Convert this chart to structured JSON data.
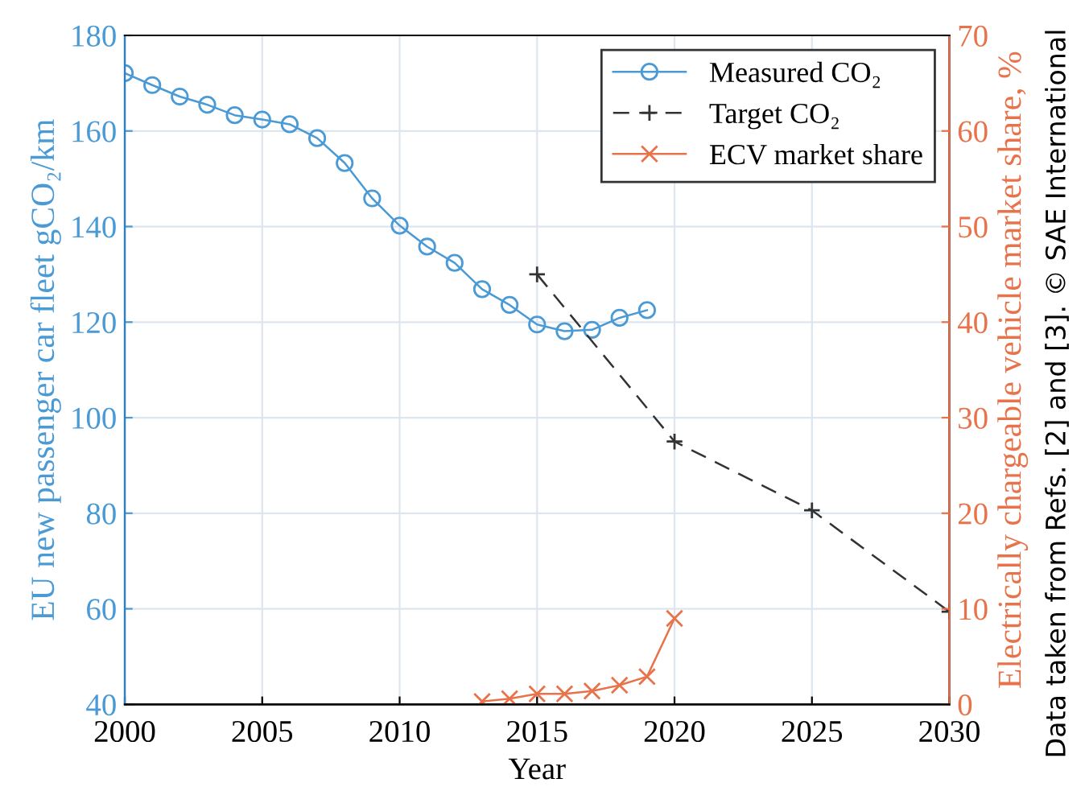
{
  "chart_data": {
    "type": "line",
    "xlabel": "Year",
    "ylabel": "EU new passenger car fleet gCO₂/km",
    "y2label": "Electrically chargeable vehicle market share, %",
    "xlim": [
      2000,
      2030
    ],
    "xticks": [
      2000,
      2005,
      2010,
      2015,
      2020,
      2025,
      2030
    ],
    "ylim": [
      40,
      180
    ],
    "yticks": [
      40,
      60,
      80,
      100,
      120,
      140,
      160,
      180
    ],
    "y2lim": [
      0,
      70
    ],
    "y2ticks": [
      0,
      10,
      20,
      30,
      40,
      50,
      60,
      70
    ],
    "grid": true,
    "legend": "top right",
    "series": [
      {
        "name": "Measured CO₂",
        "color": "#4a9ad6",
        "marker": "circle",
        "line_style": "solid",
        "x": [
          2000,
          2001,
          2002,
          2003,
          2004,
          2005,
          2006,
          2007,
          2008,
          2009,
          2010,
          2011,
          2012,
          2013,
          2014,
          2015,
          2016,
          2017,
          2018,
          2019
        ],
        "values": [
          172.1,
          169.6,
          167.2,
          165.5,
          163.3,
          162.4,
          161.4,
          158.5,
          153.3,
          145.9,
          140.2,
          135.8,
          132.4,
          126.9,
          123.6,
          119.5,
          118.1,
          118.4,
          120.9,
          122.5
        ]
      },
      {
        "name": "Target CO₂",
        "color": "#333333",
        "marker": "cross",
        "line_style": "dashed",
        "x": [
          2015,
          2020,
          2025,
          2030
        ],
        "values": [
          130,
          95,
          80.6,
          59.4
        ]
      },
      {
        "name": "ECV market share",
        "color": "#e8734a",
        "marker": "x",
        "line_style": "solid",
        "axis": "y2",
        "x": [
          2013,
          2014,
          2015,
          2016,
          2017,
          2018,
          2019,
          2020
        ],
        "values": [
          0.3,
          0.6,
          1.1,
          1.1,
          1.4,
          2.0,
          2.9,
          9.0
        ]
      }
    ],
    "annotations": [
      "Data taken from Refs. [2] and [3]. © SAE International"
    ]
  }
}
